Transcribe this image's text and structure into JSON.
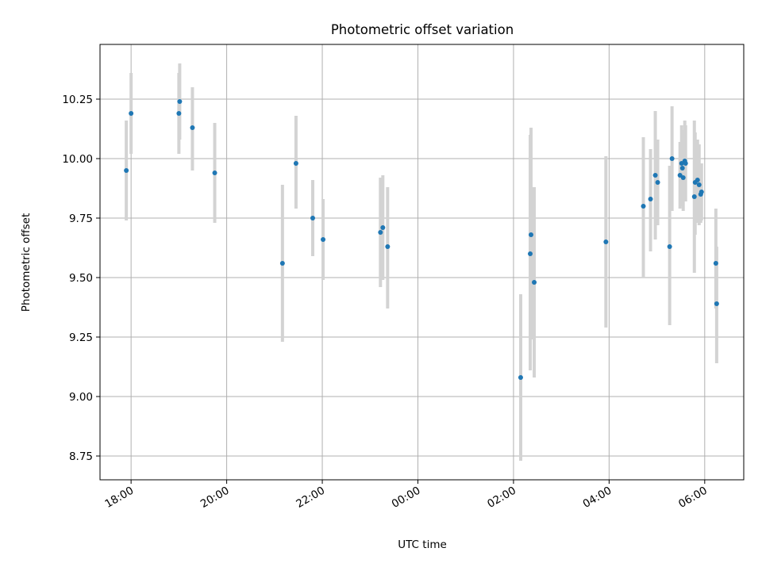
{
  "chart_data": {
    "type": "scatter",
    "title": "Photometric offset variation",
    "xlabel": "UTC time",
    "ylabel": "Photometric offset",
    "x_axis_type": "time",
    "xlim": [
      "17:21",
      "06:49"
    ],
    "ylim": [
      8.65,
      10.48
    ],
    "grid": true,
    "xticks": [
      "18:00",
      "20:00",
      "22:00",
      "00:00",
      "02:00",
      "04:00",
      "06:00"
    ],
    "yticks": [
      "8.75",
      "9.00",
      "9.25",
      "9.50",
      "9.75",
      "10.00",
      "10.25"
    ],
    "marker_color": "#1f77b4",
    "errorbar_color": "#d3d3d3",
    "points": [
      {
        "time": "17:54",
        "offset": 9.95,
        "lower": 9.74,
        "upper": 10.16
      },
      {
        "time": "18:00",
        "offset": 10.19,
        "lower": 10.02,
        "upper": 10.36
      },
      {
        "time": "19:00",
        "offset": 10.19,
        "lower": 10.02,
        "upper": 10.36
      },
      {
        "time": "19:01",
        "offset": 10.24,
        "lower": 10.08,
        "upper": 10.4
      },
      {
        "time": "19:17",
        "offset": 10.13,
        "lower": 9.95,
        "upper": 10.3
      },
      {
        "time": "19:45",
        "offset": 9.94,
        "lower": 9.73,
        "upper": 10.15
      },
      {
        "time": "21:10",
        "offset": 9.56,
        "lower": 9.23,
        "upper": 9.89
      },
      {
        "time": "21:27",
        "offset": 9.98,
        "lower": 9.79,
        "upper": 10.18
      },
      {
        "time": "21:48",
        "offset": 9.75,
        "lower": 9.59,
        "upper": 9.91
      },
      {
        "time": "22:01",
        "offset": 9.66,
        "lower": 9.49,
        "upper": 9.83
      },
      {
        "time": "23:13",
        "offset": 9.69,
        "lower": 9.46,
        "upper": 9.92
      },
      {
        "time": "23:16",
        "offset": 9.71,
        "lower": 9.49,
        "upper": 9.93
      },
      {
        "time": "23:22",
        "offset": 9.63,
        "lower": 9.37,
        "upper": 9.88
      },
      {
        "time": "02:09",
        "offset": 9.08,
        "lower": 8.73,
        "upper": 9.43
      },
      {
        "time": "02:21",
        "offset": 9.6,
        "lower": 9.11,
        "upper": 10.1
      },
      {
        "time": "02:22",
        "offset": 9.68,
        "lower": 9.24,
        "upper": 10.13
      },
      {
        "time": "02:26",
        "offset": 9.48,
        "lower": 9.08,
        "upper": 9.88
      },
      {
        "time": "03:56",
        "offset": 9.65,
        "lower": 9.29,
        "upper": 10.01
      },
      {
        "time": "04:43",
        "offset": 9.8,
        "lower": 9.5,
        "upper": 10.09
      },
      {
        "time": "04:52",
        "offset": 9.83,
        "lower": 9.61,
        "upper": 10.04
      },
      {
        "time": "04:58",
        "offset": 9.93,
        "lower": 9.66,
        "upper": 10.2
      },
      {
        "time": "05:01",
        "offset": 9.9,
        "lower": 9.72,
        "upper": 10.08
      },
      {
        "time": "05:16",
        "offset": 9.63,
        "lower": 9.3,
        "upper": 9.97
      },
      {
        "time": "05:19",
        "offset": 10.0,
        "lower": 9.78,
        "upper": 10.22
      },
      {
        "time": "05:29",
        "offset": 9.93,
        "lower": 9.79,
        "upper": 10.07
      },
      {
        "time": "05:31",
        "offset": 9.98,
        "lower": 9.84,
        "upper": 10.14
      },
      {
        "time": "05:32",
        "offset": 9.96,
        "lower": 9.8,
        "upper": 10.12
      },
      {
        "time": "05:33",
        "offset": 9.92,
        "lower": 9.78,
        "upper": 10.06
      },
      {
        "time": "05:35",
        "offset": 9.99,
        "lower": 9.85,
        "upper": 10.16
      },
      {
        "time": "05:36",
        "offset": 9.98,
        "lower": 9.82,
        "upper": 10.14
      },
      {
        "time": "05:47",
        "offset": 9.84,
        "lower": 9.52,
        "upper": 10.16
      },
      {
        "time": "05:48",
        "offset": 9.9,
        "lower": 9.68,
        "upper": 10.11
      },
      {
        "time": "05:51",
        "offset": 9.91,
        "lower": 9.73,
        "upper": 10.08
      },
      {
        "time": "05:53",
        "offset": 9.89,
        "lower": 9.72,
        "upper": 10.06
      },
      {
        "time": "05:55",
        "offset": 9.85,
        "lower": 9.73,
        "upper": 9.97
      },
      {
        "time": "05:56",
        "offset": 9.86,
        "lower": 9.74,
        "upper": 9.98
      },
      {
        "time": "06:14",
        "offset": 9.56,
        "lower": 9.37,
        "upper": 9.79
      },
      {
        "time": "06:15",
        "offset": 9.39,
        "lower": 9.14,
        "upper": 9.63
      }
    ]
  }
}
